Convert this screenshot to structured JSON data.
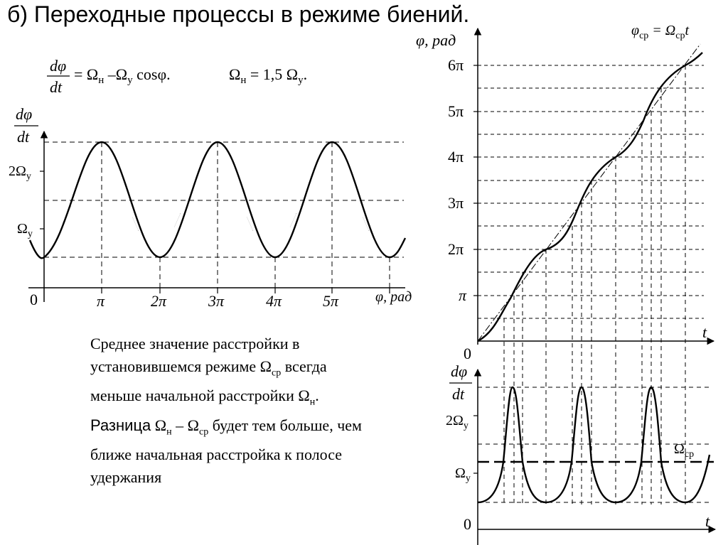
{
  "title": "б) Переходные процессы в режиме биений.",
  "equation": {
    "numerator": "dφ",
    "denominator": "dt",
    "rhs_prefix": "= Ω",
    "sub_n": "н",
    "rhs_mid": " –Ω",
    "sub_y": "у",
    "rhs_suffix": " cosφ.",
    "condition_prefix": "Ω",
    "condition_mid": " = 1,5 Ω",
    "condition_end": "."
  },
  "left_plot": {
    "y_label_num": "dφ",
    "y_label_den": "dt",
    "tick_2omega": "2Ω",
    "tick_omega": "Ω",
    "sub_y": "у",
    "origin": "0",
    "x_ticks": [
      "π",
      "2π",
      "3π",
      "4π",
      "5π"
    ],
    "x_axis_label": "φ, рад"
  },
  "right_top_plot": {
    "y_axis_label": "φ, рад",
    "y_ticks": [
      "6π",
      "5π",
      "4π",
      "3π",
      "2π",
      "π"
    ],
    "origin": "0",
    "x_axis_label": "t",
    "line_label_left": "φ",
    "line_label_sub": "ср",
    "line_label_eq": " = Ω",
    "line_label_t": "t"
  },
  "right_bottom_plot": {
    "y_label_num": "dφ",
    "y_label_den": "dt",
    "tick_2omega": "2Ω",
    "tick_omega": "Ω",
    "sub_y": "у",
    "level_label": "Ω",
    "level_sub": "ср",
    "origin": "0",
    "x_axis_label": "t"
  },
  "paragraph": {
    "line1": "Среднее значение расстройки в",
    "line2_a": "установившемся режиме Ω",
    "line2_sub": "ср",
    "line2_b": " всегда",
    "line3_a": "меньше начальной расстройки Ω",
    "line3_sub": "н",
    "line3_b": ".",
    "line4_bold": "Разница",
    "line4_a": " Ω",
    "line4_sub1": "н",
    "line4_b": " – Ω",
    "line4_sub2": "ср",
    "line4_c": " будет тем больше, чем",
    "line5": "ближе начальная расстройка к полосе",
    "line6": "удержания"
  }
}
